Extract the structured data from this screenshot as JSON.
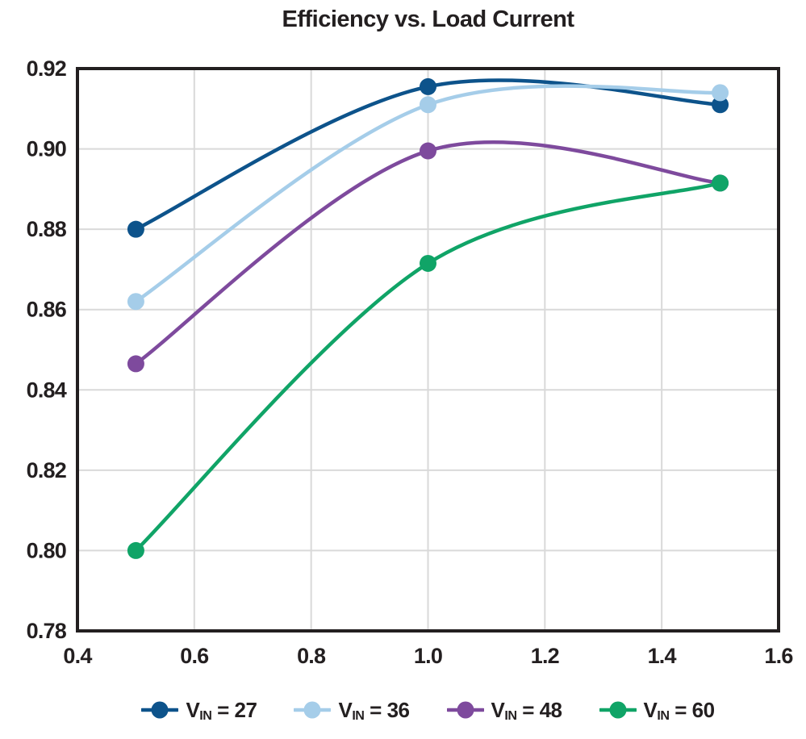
{
  "figure": {
    "title": "Efficiency vs. Load Current"
  },
  "chart_data": {
    "type": "line",
    "title": "Efficiency vs. Load Current",
    "xlabel": "",
    "ylabel": "",
    "xlim": [
      0.4,
      1.6
    ],
    "ylim": [
      0.78,
      0.92
    ],
    "x_ticks": [
      0.4,
      0.6,
      0.8,
      1.0,
      1.2,
      1.4,
      1.6
    ],
    "x_tick_labels": [
      "0.4",
      "0.6",
      "0.8",
      "1.0",
      "1.2",
      "1.4",
      "1.6"
    ],
    "y_ticks": [
      0.78,
      0.8,
      0.82,
      0.84,
      0.86,
      0.88,
      0.9,
      0.92
    ],
    "y_tick_labels": [
      "0.78",
      "0.80",
      "0.82",
      "0.84",
      "0.86",
      "0.88",
      "0.90",
      "0.92"
    ],
    "grid": true,
    "legend_position": "bottom",
    "line_smoothing": "spline",
    "x": [
      0.5,
      1.0,
      1.5
    ],
    "series": [
      {
        "name": "VIN = 27",
        "legend": {
          "prefix": "V",
          "sub": "IN",
          "suffix": " = 27"
        },
        "color": "#0d538b",
        "values": [
          0.88,
          0.9155,
          0.911
        ]
      },
      {
        "name": "VIN = 36",
        "legend": {
          "prefix": "V",
          "sub": "IN",
          "suffix": " = 36"
        },
        "color": "#a5cde9",
        "values": [
          0.862,
          0.911,
          0.914
        ]
      },
      {
        "name": "VIN = 48",
        "legend": {
          "prefix": "V",
          "sub": "IN",
          "suffix": " = 48"
        },
        "color": "#7e4a9d",
        "values": [
          0.8465,
          0.8995,
          0.8915
        ]
      },
      {
        "name": "VIN = 60",
        "legend": {
          "prefix": "V",
          "sub": "IN",
          "suffix": " = 60"
        },
        "color": "#10a467",
        "values": [
          0.8,
          0.8715,
          0.8915
        ]
      }
    ],
    "style": {
      "grid_color": "#d9d9d9",
      "axis_color": "#231f20",
      "text_color": "#231f20",
      "background": "#ffffff",
      "line_width": 4.5,
      "marker_radius": 10.5
    }
  }
}
